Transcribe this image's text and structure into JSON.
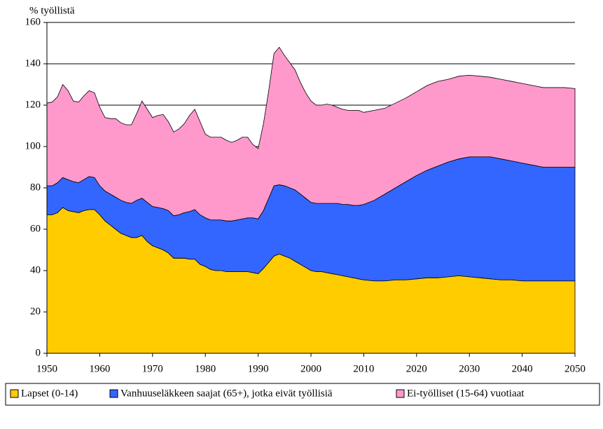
{
  "chart_data": {
    "type": "stacked-area",
    "y_label": "% työllistä",
    "x": [
      1950,
      1951,
      1952,
      1953,
      1954,
      1955,
      1956,
      1957,
      1958,
      1959,
      1960,
      1961,
      1962,
      1963,
      1964,
      1965,
      1966,
      1967,
      1968,
      1969,
      1970,
      1971,
      1972,
      1973,
      1974,
      1975,
      1976,
      1977,
      1978,
      1979,
      1980,
      1981,
      1982,
      1983,
      1984,
      1985,
      1986,
      1987,
      1988,
      1989,
      1990,
      1991,
      1992,
      1993,
      1994,
      1995,
      1996,
      1997,
      1998,
      1999,
      2000,
      2001,
      2002,
      2003,
      2004,
      2005,
      2006,
      2007,
      2008,
      2009,
      2010,
      2012,
      2014,
      2016,
      2018,
      2020,
      2022,
      2024,
      2026,
      2028,
      2030,
      2032,
      2034,
      2036,
      2038,
      2040,
      2042,
      2044,
      2046,
      2048,
      2050
    ],
    "series": [
      {
        "name": "Lapset (0-14)",
        "color": "#ffcc00",
        "values": [
          67,
          67,
          68,
          70.5,
          69,
          68.5,
          68,
          69,
          69.5,
          69.5,
          67,
          64,
          62,
          60,
          58,
          57,
          56,
          56,
          57,
          54,
          52,
          51,
          50,
          48.5,
          46,
          46,
          46,
          45.5,
          45.5,
          43,
          42,
          40.5,
          40,
          40,
          39.5,
          39.5,
          39.5,
          39.5,
          39.5,
          39,
          38.5,
          41,
          44,
          47,
          48,
          47,
          46,
          44.5,
          43,
          41.5,
          40,
          39.5,
          39.5,
          39,
          38.5,
          38,
          37.5,
          37,
          36.5,
          36,
          35.5,
          35,
          35,
          35.5,
          35.5,
          36,
          36.5,
          36.5,
          37,
          37.5,
          37,
          36.5,
          36,
          35.5,
          35.5,
          35,
          35,
          35,
          35,
          35,
          35
        ]
      },
      {
        "name": "Vanhuuseläkkeen saajat (65+), jotka eivät työllisiä",
        "color": "#3366ff",
        "values": [
          14,
          14,
          14.5,
          14.5,
          15,
          14.5,
          14.5,
          15,
          16,
          15.5,
          14,
          14.5,
          15,
          15.5,
          16,
          16,
          16.5,
          18,
          18,
          19,
          19,
          19.5,
          20,
          20.5,
          20.5,
          21,
          22,
          23,
          24,
          24,
          23.5,
          24,
          24.5,
          24.5,
          24.5,
          24.5,
          25,
          25.5,
          26,
          26.5,
          26.5,
          28,
          31,
          34,
          33.5,
          34,
          34,
          34.5,
          34,
          33.5,
          33,
          33,
          33,
          33.5,
          34,
          34.5,
          34.5,
          35,
          35,
          35.5,
          36.5,
          39,
          42,
          44.5,
          47.5,
          50,
          52,
          54,
          55.5,
          56.5,
          58,
          58.5,
          59,
          58.5,
          57.5,
          57,
          56,
          55,
          55,
          55,
          55
        ]
      },
      {
        "name": "Ei-työlliset (15-64) vuotiaat",
        "color": "#ff99cc",
        "values": [
          40,
          40.5,
          41.5,
          45,
          43,
          39,
          39,
          40.5,
          41.5,
          41,
          38,
          35.5,
          36.5,
          38,
          37.5,
          37.5,
          38,
          42,
          47,
          45,
          43,
          44.5,
          45.5,
          43,
          40.5,
          41.5,
          43,
          46.5,
          48.5,
          45,
          40.5,
          40,
          40,
          40,
          39,
          38,
          38.5,
          39.5,
          39,
          35.5,
          34,
          42,
          52,
          64,
          66.5,
          63,
          60.5,
          58,
          54,
          51,
          49,
          47.5,
          47.5,
          48,
          47.5,
          46.5,
          46,
          45.5,
          46,
          46,
          44.5,
          43.5,
          41.5,
          41,
          40.5,
          40.5,
          41,
          41,
          40,
          40,
          39.5,
          39,
          38.5,
          38.5,
          38.5,
          38.5,
          38.5,
          38.5,
          38.5,
          38.5,
          38
        ]
      }
    ],
    "xlim": [
      1950,
      2050
    ],
    "xticks": [
      1950,
      1960,
      1970,
      1980,
      1990,
      2000,
      2010,
      2020,
      2030,
      2040,
      2050
    ],
    "ylim": [
      0,
      160
    ],
    "yticks": [
      0,
      20,
      40,
      60,
      80,
      100,
      120,
      140,
      160
    ],
    "grid": true,
    "legend": "bottom"
  }
}
